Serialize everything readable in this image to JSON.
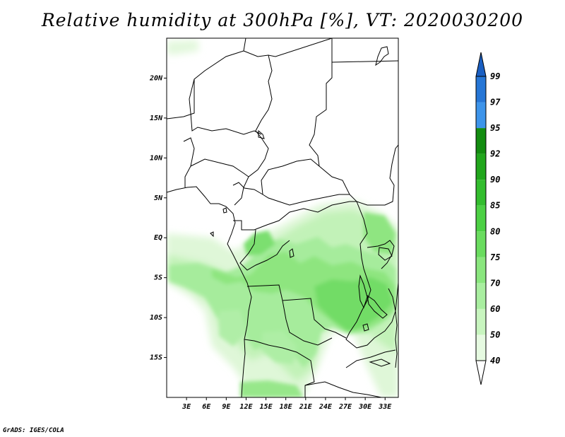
{
  "title": "Relative humidity at 300hPa [%], VT: 2020030200",
  "credit": "GrADS: IGES/COLA",
  "map": {
    "variable": "Relative humidity",
    "level": "300hPa",
    "units": "%",
    "valid_time": "2020030200",
    "lon_range": [
      0,
      35
    ],
    "lat_range": [
      -20,
      25
    ],
    "lat_labels": [
      {
        "lat": 20,
        "text": "20N"
      },
      {
        "lat": 15,
        "text": "15N"
      },
      {
        "lat": 10,
        "text": "10N"
      },
      {
        "lat": 5,
        "text": "5N"
      },
      {
        "lat": 0,
        "text": "EQ"
      },
      {
        "lat": -5,
        "text": "5S"
      },
      {
        "lat": -10,
        "text": "10S"
      },
      {
        "lat": -15,
        "text": "15S"
      }
    ],
    "lon_labels": [
      {
        "lon": 3,
        "text": "3E"
      },
      {
        "lon": 6,
        "text": "6E"
      },
      {
        "lon": 9,
        "text": "9E"
      },
      {
        "lon": 12,
        "text": "12E"
      },
      {
        "lon": 15,
        "text": "15E"
      },
      {
        "lon": 18,
        "text": "18E"
      },
      {
        "lon": 21,
        "text": "21E"
      },
      {
        "lon": 24,
        "text": "24E"
      },
      {
        "lon": 27,
        "text": "27E"
      },
      {
        "lon": 30,
        "text": "30E"
      },
      {
        "lon": 33,
        "text": "33E"
      }
    ]
  },
  "colorbar": {
    "levels": [
      {
        "value": 40,
        "label": "40",
        "color": "#ffffff"
      },
      {
        "value": 50,
        "label": "50",
        "color": "#e6fae1"
      },
      {
        "value": 60,
        "label": "60",
        "color": "#c8f5bf"
      },
      {
        "value": 70,
        "label": "70",
        "color": "#a9eea0"
      },
      {
        "value": 75,
        "label": "75",
        "color": "#8ae67e"
      },
      {
        "value": 80,
        "label": "80",
        "color": "#6adc5f"
      },
      {
        "value": 85,
        "label": "85",
        "color": "#4cd044"
      },
      {
        "value": 90,
        "label": "90",
        "color": "#33bd2e"
      },
      {
        "value": 92,
        "label": "92",
        "color": "#21a61c"
      },
      {
        "value": 95,
        "label": "95",
        "color": "#138c10"
      },
      {
        "value": 97,
        "label": "97",
        "color": "#3d94ea"
      },
      {
        "value": 99,
        "label": "99",
        "color": "#2676d6"
      }
    ],
    "top_color": "#1a5fc2"
  }
}
